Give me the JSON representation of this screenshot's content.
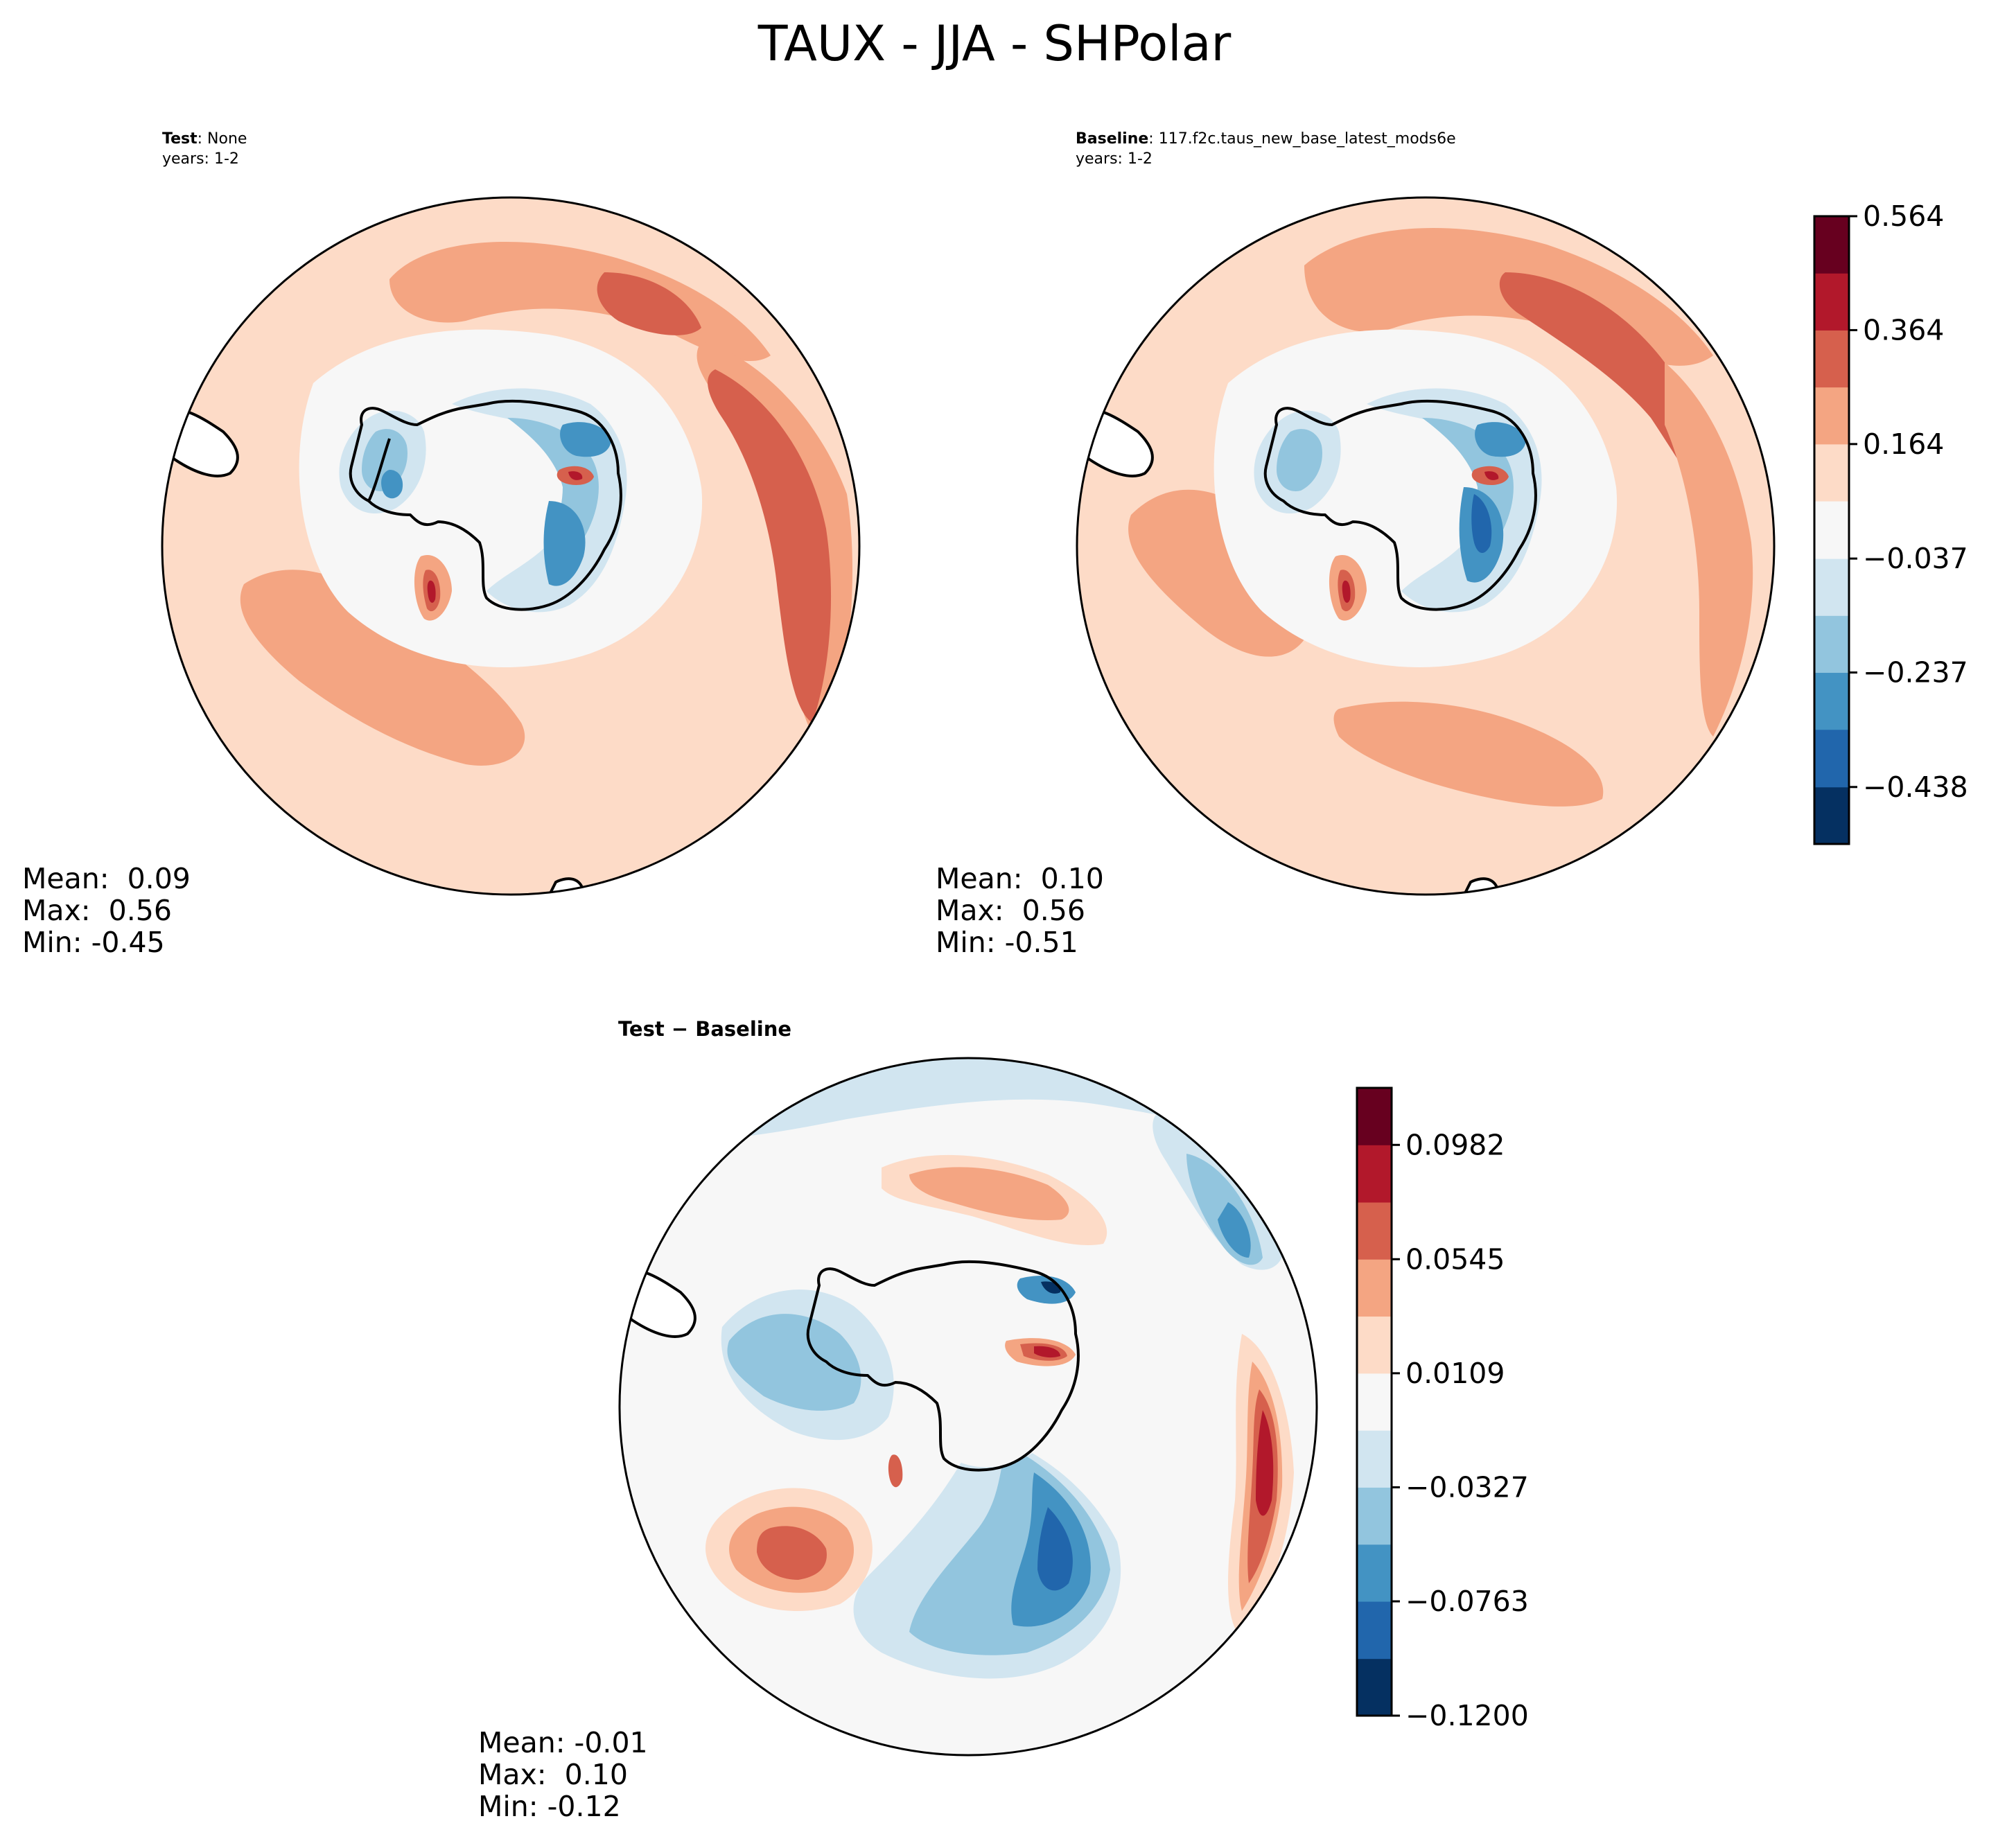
{
  "figure": {
    "title": "TAUX - JJA - SHPolar"
  },
  "panels": {
    "test": {
      "label": "Test",
      "name": "None",
      "years": "years: 1-2",
      "stats": {
        "mean": "Mean:  0.09",
        "max": "Max:  0.56",
        "min": "Min: -0.45"
      }
    },
    "baseline": {
      "label": "Baseline",
      "name": "117.f2c.taus_new_base_latest_mods6e",
      "years": "years: 1-2",
      "stats": {
        "mean": "Mean:  0.10",
        "max": "Max:  0.56",
        "min": "Min: -0.51"
      }
    },
    "diff": {
      "title": "Test − Baseline",
      "stats": {
        "mean": "Mean: -0.01",
        "max": "Max:  0.10",
        "min": "Min: -0.12"
      }
    }
  },
  "colors": {
    "rdbu_11": [
      "#053061",
      "#2166ac",
      "#4393c3",
      "#92c5de",
      "#d1e5f0",
      "#f7f7f7",
      "#fddbc7",
      "#f4a582",
      "#d6604d",
      "#b2182b",
      "#67001f"
    ],
    "coast": "#000000"
  },
  "chart_data": [
    {
      "type": "contour-map",
      "projection": "south-polar-stereographic",
      "title": "Test: None",
      "levels": [
        -0.538,
        -0.438,
        -0.337,
        -0.237,
        -0.137,
        -0.037,
        0.064,
        0.164,
        0.264,
        0.364,
        0.464,
        0.564
      ],
      "mean": 0.09,
      "max": 0.56,
      "min": -0.45
    },
    {
      "type": "contour-map",
      "projection": "south-polar-stereographic",
      "title": "Baseline: 117.f2c.taus_new_base_latest_mods6e",
      "levels": [
        -0.538,
        -0.438,
        -0.337,
        -0.237,
        -0.137,
        -0.037,
        0.064,
        0.164,
        0.264,
        0.364,
        0.464,
        0.564
      ],
      "colorbar_ticks": [
        "0.564",
        "0.364",
        "0.164",
        "−0.037",
        "−0.237",
        "−0.438"
      ],
      "mean": 0.1,
      "max": 0.56,
      "min": -0.51
    },
    {
      "type": "contour-map",
      "projection": "south-polar-stereographic",
      "title": "Test − Baseline",
      "levels": [
        -0.12,
        -0.0982,
        -0.0763,
        -0.0545,
        -0.0327,
        -0.0109,
        0.0109,
        0.0327,
        0.0545,
        0.0763,
        0.0982,
        0.12
      ],
      "colorbar_ticks": [
        "0.0982",
        "0.0545",
        "0.0109",
        "−0.0327",
        "−0.0763",
        "−0.1200"
      ],
      "mean": -0.01,
      "max": 0.1,
      "min": -0.12
    }
  ]
}
